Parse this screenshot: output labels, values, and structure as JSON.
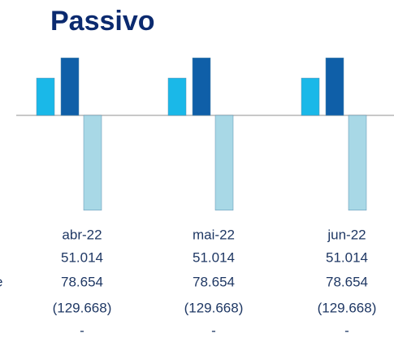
{
  "chart_data": {
    "type": "bar",
    "title": "Passivo",
    "categories": [
      "abr-22",
      "mai-22",
      "jun-22"
    ],
    "series": [
      {
        "color": "#1ab8e8",
        "values": [
          51014,
          51014,
          51014
        ],
        "value_labels": [
          "51.014",
          "51.014",
          "51.014"
        ]
      },
      {
        "color": "#0f5fa8",
        "values": [
          78654,
          78654,
          78654
        ],
        "value_labels": [
          "78.654",
          "78.654",
          "78.654"
        ]
      },
      {
        "color": "#a8d8e6",
        "values": [
          -129668,
          -129668,
          -129668
        ],
        "value_labels": [
          "(129.668)",
          "(129.668)",
          "(129.668)"
        ]
      },
      {
        "values": [
          0,
          0,
          0
        ],
        "value_labels": [
          "-",
          "-",
          "-"
        ]
      }
    ],
    "row_label_fragment": "e",
    "ylim": [
      -130000,
      80000
    ]
  }
}
